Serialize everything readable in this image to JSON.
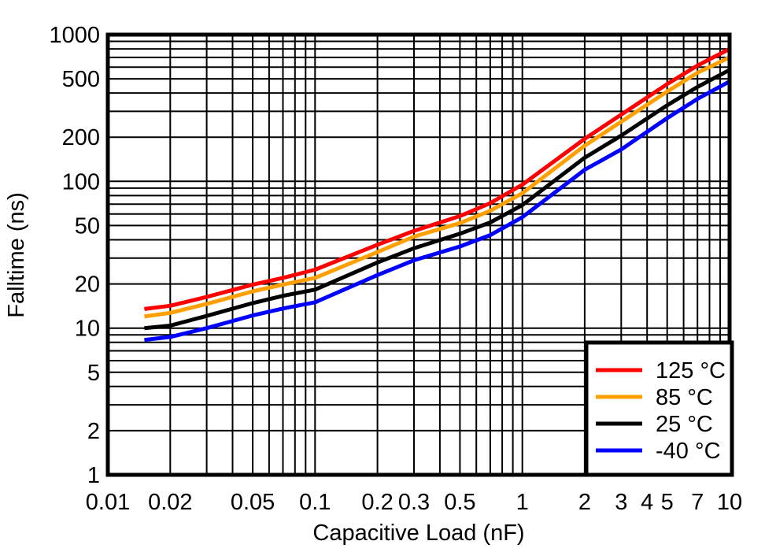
{
  "chart_data": {
    "type": "line",
    "title": "",
    "xlabel": "Capacitive Load (nF)",
    "ylabel": "Falltime (ns)",
    "x_scale": "log",
    "y_scale": "log",
    "xlim": [
      0.01,
      10
    ],
    "ylim": [
      1,
      1000
    ],
    "grid": "on-all-log-minors",
    "grid_color": "#000000",
    "axis_color": "#000000",
    "background_color": "#ffffff",
    "legend_position": "bottom-right",
    "x_tick_values": [
      0.01,
      0.02,
      0.05,
      0.1,
      0.2,
      0.3,
      0.5,
      1,
      2,
      3,
      4,
      5,
      7,
      10
    ],
    "x_tick_labels": [
      "0.01",
      "0.02",
      "0.05",
      "0.1",
      "0.2",
      "0.3",
      "0.5",
      "1",
      "2",
      "3",
      "4",
      "5",
      "7",
      "10"
    ],
    "y_tick_values": [
      1000,
      500,
      200,
      100,
      50,
      20,
      10,
      5,
      2,
      1
    ],
    "y_tick_labels": [
      "1000",
      "500",
      "200",
      "100",
      "50",
      "20",
      "10",
      "5",
      "2",
      "1"
    ],
    "x": [
      0.015,
      0.02,
      0.03,
      0.05,
      0.07,
      0.1,
      0.2,
      0.3,
      0.5,
      0.7,
      1,
      2,
      3,
      5,
      7,
      10
    ],
    "series": [
      {
        "name": "125 °C",
        "color": "#ff0000",
        "values": [
          13.5,
          14.2,
          16.3,
          19.8,
          22,
          25,
          37,
          46,
          58,
          71,
          95,
          195,
          285,
          460,
          615,
          800
        ]
      },
      {
        "name": "85 °C",
        "color": "#ffa000",
        "values": [
          12,
          12.7,
          14.6,
          17.8,
          19.8,
          22,
          33,
          42,
          52,
          63,
          83,
          175,
          255,
          410,
          550,
          700
        ]
      },
      {
        "name": "25 °C",
        "color": "#000000",
        "values": [
          10,
          10.4,
          12.1,
          14.8,
          16.6,
          18.3,
          28,
          35,
          44,
          52.5,
          69,
          145,
          205,
          330,
          440,
          575
        ]
      },
      {
        "name": "-40 °C",
        "color": "#0000ff",
        "values": [
          8.3,
          8.7,
          10.0,
          12.2,
          13.6,
          15,
          23,
          29,
          36,
          43,
          57,
          120,
          165,
          270,
          365,
          480
        ]
      }
    ]
  }
}
